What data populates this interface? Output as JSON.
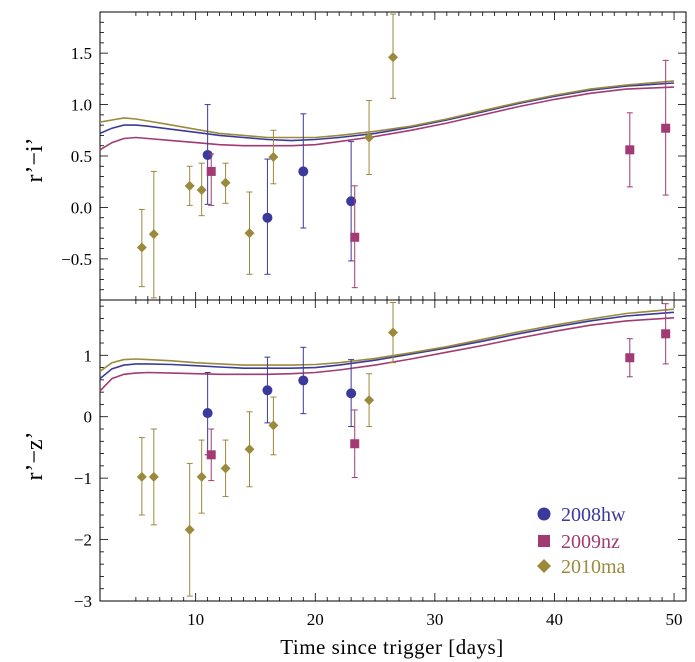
{
  "chart_data": {
    "type": "scatter",
    "xlabel": "Time since trigger [days]",
    "xlim": [
      2,
      51
    ],
    "x_ticks": [
      10,
      20,
      30,
      40,
      50
    ],
    "legend_placement": "bottom-right of lower panel",
    "colors": {
      "2008hw": "#3b3a9c",
      "2009nz": "#a23b73",
      "2010ma": "#9b8a3c"
    },
    "series_meta": [
      {
        "name": "2008hw",
        "marker": "circle"
      },
      {
        "name": "2009nz",
        "marker": "square"
      },
      {
        "name": "2010ma",
        "marker": "diamond"
      }
    ],
    "panels": [
      {
        "ylabel": "r’−i’",
        "ylim": [
          -0.9,
          1.9
        ],
        "y_ticks": [
          -0.5,
          0.0,
          0.5,
          1.0,
          1.5
        ],
        "y_tick_labels": [
          "−0.5",
          "0.0",
          "0.5",
          "1.0",
          "1.5"
        ],
        "points": {
          "2008hw": [
            {
              "x": 11.0,
              "y": 0.51,
              "lo": 0.03,
              "hi": 1.0
            },
            {
              "x": 16.0,
              "y": -0.1,
              "lo": -0.65,
              "hi": 0.47
            },
            {
              "x": 19.0,
              "y": 0.35,
              "lo": -0.2,
              "hi": 0.91
            },
            {
              "x": 23.0,
              "y": 0.06,
              "lo": -0.52,
              "hi": 0.64
            }
          ],
          "2009nz": [
            {
              "x": 11.3,
              "y": 0.35,
              "lo": 0.02,
              "hi": 0.52
            },
            {
              "x": 23.3,
              "y": -0.29,
              "lo": -0.78,
              "hi": 0.21
            },
            {
              "x": 46.3,
              "y": 0.56,
              "lo": 0.2,
              "hi": 0.92
            },
            {
              "x": 49.3,
              "y": 0.77,
              "lo": 0.12,
              "hi": 1.43
            }
          ],
          "2010ma": [
            {
              "x": 5.5,
              "y": -0.39,
              "lo": -0.77,
              "hi": -0.02
            },
            {
              "x": 6.5,
              "y": -0.26,
              "lo": -0.88,
              "hi": 0.35
            },
            {
              "x": 9.5,
              "y": 0.21,
              "lo": 0.02,
              "hi": 0.4
            },
            {
              "x": 10.5,
              "y": 0.17,
              "lo": -0.08,
              "hi": 0.43
            },
            {
              "x": 12.5,
              "y": 0.24,
              "lo": 0.04,
              "hi": 0.43
            },
            {
              "x": 14.5,
              "y": -0.25,
              "lo": -0.65,
              "hi": 0.15
            },
            {
              "x": 16.5,
              "y": 0.49,
              "lo": 0.23,
              "hi": 0.75
            },
            {
              "x": 24.5,
              "y": 0.68,
              "lo": 0.32,
              "hi": 1.04
            },
            {
              "x": 26.5,
              "y": 1.46,
              "lo": 1.06,
              "hi": 1.88
            }
          ]
        },
        "curves": {
          "2008hw": [
            [
              2,
              0.72
            ],
            [
              3,
              0.77
            ],
            [
              4,
              0.8
            ],
            [
              5,
              0.8
            ],
            [
              6,
              0.79
            ],
            [
              8,
              0.76
            ],
            [
              10,
              0.73
            ],
            [
              12,
              0.7
            ],
            [
              14,
              0.68
            ],
            [
              16,
              0.66
            ],
            [
              18,
              0.65
            ],
            [
              20,
              0.66
            ],
            [
              22,
              0.68
            ],
            [
              25,
              0.72
            ],
            [
              28,
              0.78
            ],
            [
              31,
              0.85
            ],
            [
              34,
              0.93
            ],
            [
              37,
              1.01
            ],
            [
              40,
              1.08
            ],
            [
              43,
              1.14
            ],
            [
              46,
              1.18
            ],
            [
              50,
              1.21
            ]
          ],
          "2009nz": [
            [
              2,
              0.56
            ],
            [
              3,
              0.63
            ],
            [
              4,
              0.67
            ],
            [
              5,
              0.68
            ],
            [
              6,
              0.67
            ],
            [
              8,
              0.65
            ],
            [
              10,
              0.63
            ],
            [
              12,
              0.61
            ],
            [
              14,
              0.6
            ],
            [
              16,
              0.6
            ],
            [
              18,
              0.6
            ],
            [
              20,
              0.61
            ],
            [
              22,
              0.64
            ],
            [
              25,
              0.69
            ],
            [
              28,
              0.75
            ],
            [
              31,
              0.82
            ],
            [
              34,
              0.9
            ],
            [
              37,
              0.98
            ],
            [
              40,
              1.05
            ],
            [
              43,
              1.11
            ],
            [
              46,
              1.15
            ],
            [
              50,
              1.17
            ]
          ],
          "2010ma": [
            [
              2,
              0.83
            ],
            [
              3,
              0.85
            ],
            [
              4,
              0.87
            ],
            [
              5,
              0.86
            ],
            [
              6,
              0.84
            ],
            [
              8,
              0.8
            ],
            [
              10,
              0.76
            ],
            [
              12,
              0.72
            ],
            [
              14,
              0.7
            ],
            [
              16,
              0.68
            ],
            [
              18,
              0.68
            ],
            [
              20,
              0.68
            ],
            [
              22,
              0.7
            ],
            [
              25,
              0.74
            ],
            [
              28,
              0.79
            ],
            [
              31,
              0.86
            ],
            [
              34,
              0.94
            ],
            [
              37,
              1.02
            ],
            [
              40,
              1.09
            ],
            [
              43,
              1.15
            ],
            [
              46,
              1.19
            ],
            [
              50,
              1.23
            ]
          ]
        }
      },
      {
        "ylabel": "r’−z’",
        "ylim": [
          -3.0,
          1.9
        ],
        "y_ticks": [
          -3,
          -2,
          -1,
          0,
          1
        ],
        "y_tick_labels": [
          "−3",
          "−2",
          "−1",
          "0",
          "1"
        ],
        "points": {
          "2008hw": [
            {
              "x": 11.0,
              "y": 0.06,
              "lo": -0.62,
              "hi": 0.72
            },
            {
              "x": 16.0,
              "y": 0.43,
              "lo": -0.1,
              "hi": 0.97
            },
            {
              "x": 19.0,
              "y": 0.59,
              "lo": 0.05,
              "hi": 1.13
            },
            {
              "x": 23.0,
              "y": 0.38,
              "lo": -0.16,
              "hi": 0.93
            }
          ],
          "2009nz": [
            {
              "x": 11.3,
              "y": -0.62,
              "lo": -1.04,
              "hi": -0.2
            },
            {
              "x": 23.3,
              "y": -0.44,
              "lo": -0.99,
              "hi": 0.11
            },
            {
              "x": 46.3,
              "y": 0.96,
              "lo": 0.65,
              "hi": 1.27
            },
            {
              "x": 49.3,
              "y": 1.35,
              "lo": 0.86,
              "hi": 1.84
            }
          ],
          "2010ma": [
            {
              "x": 5.5,
              "y": -0.98,
              "lo": -1.6,
              "hi": -0.34
            },
            {
              "x": 6.5,
              "y": -0.98,
              "lo": -1.76,
              "hi": -0.2
            },
            {
              "x": 9.5,
              "y": -1.84,
              "lo": -2.92,
              "hi": -0.76
            },
            {
              "x": 10.5,
              "y": -0.98,
              "lo": -1.57,
              "hi": -0.38
            },
            {
              "x": 12.5,
              "y": -0.84,
              "lo": -1.3,
              "hi": -0.38
            },
            {
              "x": 14.5,
              "y": -0.53,
              "lo": -1.14,
              "hi": 0.08
            },
            {
              "x": 16.5,
              "y": -0.14,
              "lo": -0.62,
              "hi": 0.32
            },
            {
              "x": 24.5,
              "y": 0.27,
              "lo": -0.16,
              "hi": 0.7
            },
            {
              "x": 26.5,
              "y": 1.37,
              "lo": 0.88,
              "hi": 1.86
            }
          ]
        },
        "curves": {
          "2008hw": [
            [
              2,
              0.62
            ],
            [
              3,
              0.78
            ],
            [
              4,
              0.84
            ],
            [
              5,
              0.86
            ],
            [
              6,
              0.86
            ],
            [
              8,
              0.85
            ],
            [
              10,
              0.83
            ],
            [
              12,
              0.81
            ],
            [
              14,
              0.79
            ],
            [
              16,
              0.79
            ],
            [
              18,
              0.79
            ],
            [
              20,
              0.8
            ],
            [
              22,
              0.84
            ],
            [
              25,
              0.92
            ],
            [
              28,
              1.02
            ],
            [
              31,
              1.12
            ],
            [
              34,
              1.23
            ],
            [
              37,
              1.35
            ],
            [
              40,
              1.46
            ],
            [
              43,
              1.56
            ],
            [
              46,
              1.64
            ],
            [
              50,
              1.7
            ]
          ],
          "2009nz": [
            [
              2,
              0.42
            ],
            [
              3,
              0.62
            ],
            [
              4,
              0.69
            ],
            [
              5,
              0.71
            ],
            [
              6,
              0.72
            ],
            [
              8,
              0.71
            ],
            [
              10,
              0.7
            ],
            [
              12,
              0.69
            ],
            [
              14,
              0.69
            ],
            [
              16,
              0.69
            ],
            [
              18,
              0.7
            ],
            [
              20,
              0.72
            ],
            [
              22,
              0.76
            ],
            [
              25,
              0.84
            ],
            [
              28,
              0.94
            ],
            [
              31,
              1.05
            ],
            [
              34,
              1.16
            ],
            [
              37,
              1.28
            ],
            [
              40,
              1.39
            ],
            [
              43,
              1.49
            ],
            [
              46,
              1.56
            ],
            [
              50,
              1.61
            ]
          ],
          "2010ma": [
            [
              2,
              0.74
            ],
            [
              3,
              0.88
            ],
            [
              4,
              0.93
            ],
            [
              5,
              0.94
            ],
            [
              6,
              0.93
            ],
            [
              8,
              0.91
            ],
            [
              10,
              0.88
            ],
            [
              12,
              0.86
            ],
            [
              14,
              0.84
            ],
            [
              16,
              0.84
            ],
            [
              18,
              0.84
            ],
            [
              20,
              0.85
            ],
            [
              22,
              0.88
            ],
            [
              25,
              0.95
            ],
            [
              28,
              1.04
            ],
            [
              31,
              1.14
            ],
            [
              34,
              1.26
            ],
            [
              37,
              1.38
            ],
            [
              40,
              1.49
            ],
            [
              43,
              1.59
            ],
            [
              46,
              1.68
            ],
            [
              50,
              1.75
            ]
          ]
        }
      }
    ]
  }
}
